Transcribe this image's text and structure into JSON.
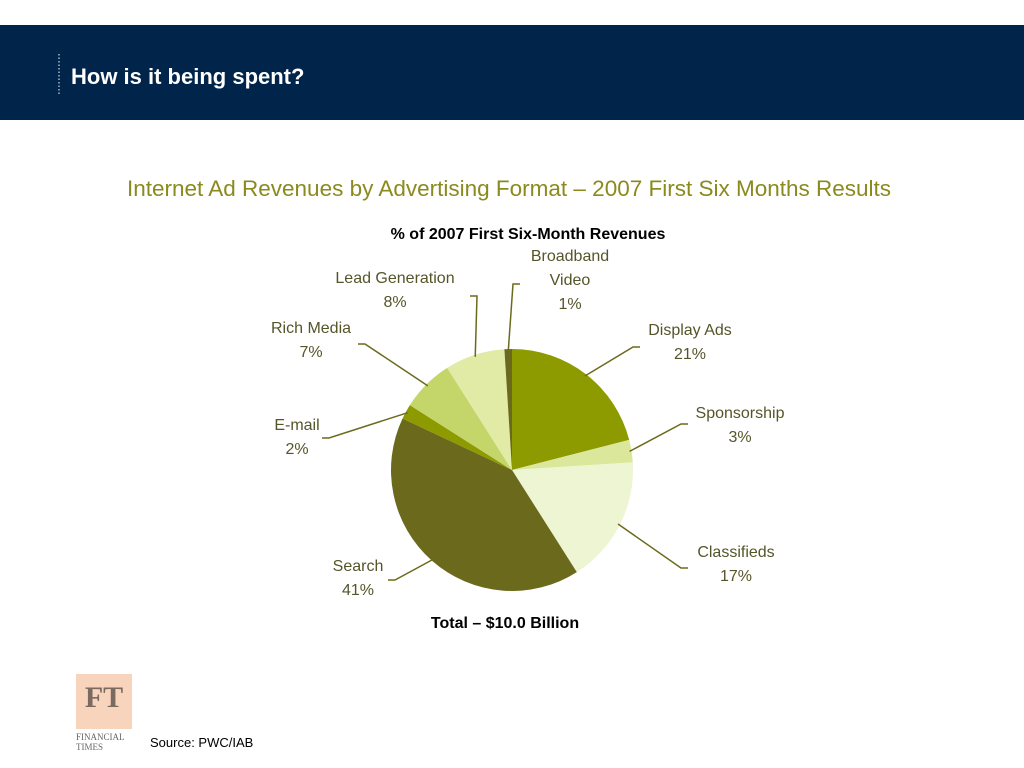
{
  "header": {
    "title": "How is it being spent?"
  },
  "chart_data": {
    "type": "pie",
    "title": "Internet Ad Revenues by Advertising Format – 2007 First Six Months Results",
    "subtitle": "% of 2007 First Six-Month Revenues",
    "categories": [
      "Display Ads",
      "Sponsorship",
      "Classifieds",
      "Search",
      "E-mail",
      "Rich Media",
      "Lead Generation",
      "Broadband Video"
    ],
    "values": [
      21,
      3,
      17,
      41,
      2,
      7,
      8,
      1
    ],
    "value_labels": [
      "21%",
      "3%",
      "17%",
      "41%",
      "2%",
      "7%",
      "8%",
      "1%"
    ],
    "colors": [
      "#8d9a00",
      "#dbe79a",
      "#eef5d2",
      "#6b6a1c",
      "#8d9a00",
      "#c4d66a",
      "#e2eba6",
      "#6b6a1c"
    ],
    "annotation": "Total – $10.0 Billion"
  },
  "source": "Source: PWC/IAB",
  "logo": {
    "mark": "FT",
    "lines": [
      "FINANCIAL",
      "TIMES"
    ]
  }
}
